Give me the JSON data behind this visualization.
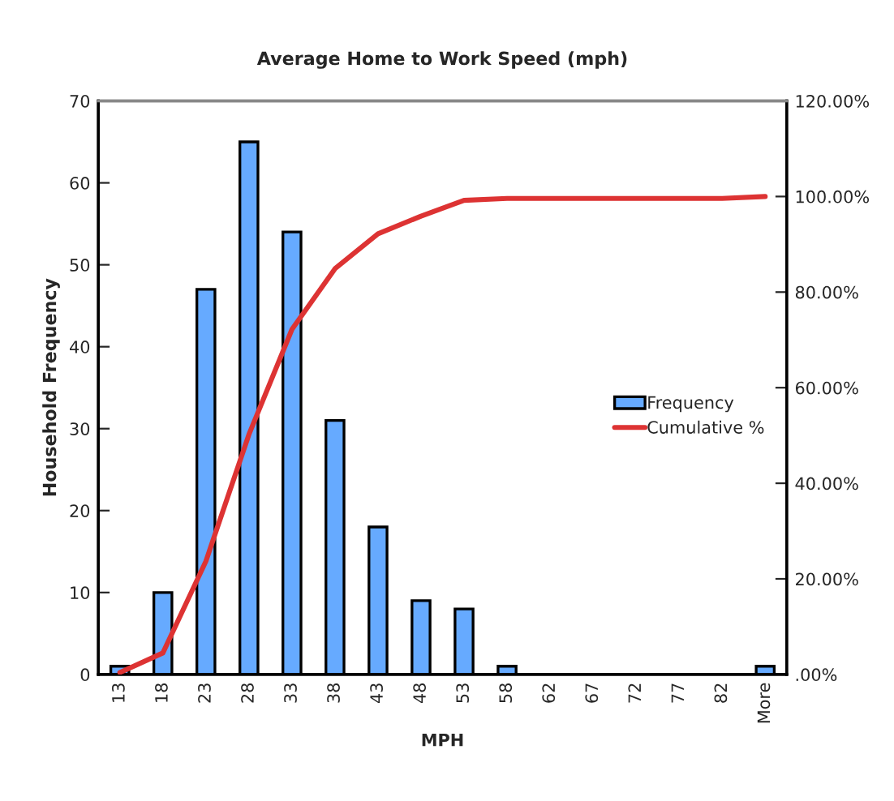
{
  "chart_data": {
    "type": "bar",
    "title": "Average Home to Work Speed (mph)",
    "xlabel": "MPH",
    "ylabel": "Household Frequency",
    "categories": [
      "13",
      "18",
      "23",
      "28",
      "33",
      "38",
      "43",
      "48",
      "53",
      "58",
      "62",
      "67",
      "72",
      "77",
      "82",
      "More"
    ],
    "series": [
      {
        "name": "Frequency",
        "color": "#66aaff",
        "values": [
          1,
          10,
          47,
          65,
          54,
          31,
          18,
          9,
          8,
          1,
          0,
          0,
          0,
          0,
          0,
          1
        ]
      },
      {
        "name": "Cumulative %",
        "type": "line",
        "axis": "y2",
        "color": "#dd3333",
        "values": [
          0.4,
          4.5,
          23.7,
          50.2,
          72.2,
          84.9,
          92.2,
          95.9,
          99.2,
          99.6,
          99.6,
          99.6,
          99.6,
          99.6,
          99.6,
          100
        ]
      }
    ],
    "ylim": [
      0,
      70
    ],
    "yticks": [
      0,
      10,
      20,
      30,
      40,
      50,
      60,
      70
    ],
    "y2lim": [
      0,
      120
    ],
    "y2ticks": [
      {
        "value": 0,
        "label": ".00%"
      },
      {
        "value": 20,
        "label": "20.00%"
      },
      {
        "value": 40,
        "label": "40.00%"
      },
      {
        "value": 60,
        "label": "60.00%"
      },
      {
        "value": 80,
        "label": "80.00%"
      },
      {
        "value": 100,
        "label": "100.00%"
      },
      {
        "value": 120,
        "label": "120.00%"
      }
    ],
    "grid": false,
    "legend": "right",
    "marker": "none",
    "line_style": "solid"
  }
}
